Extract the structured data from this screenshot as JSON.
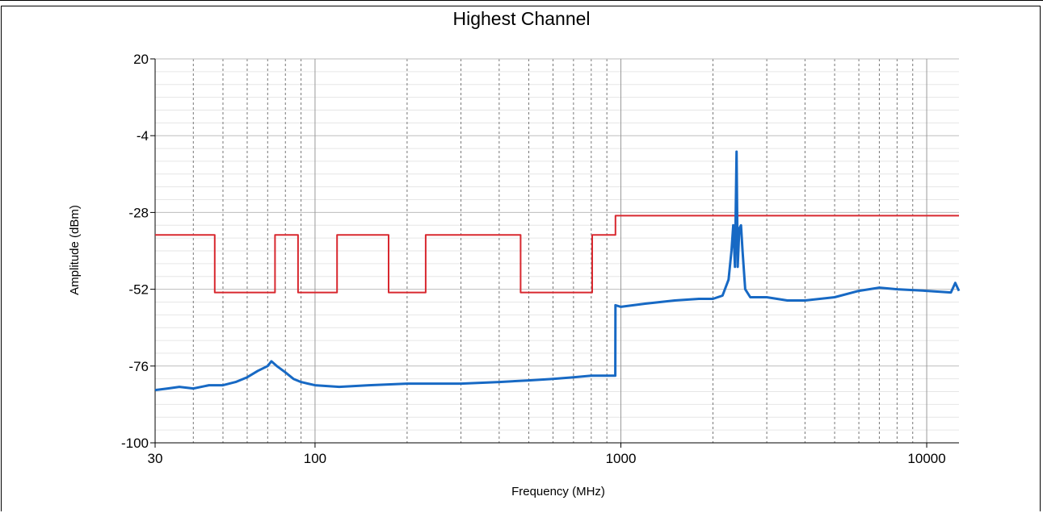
{
  "chart_data": {
    "type": "line",
    "title": "Highest Channel",
    "xlabel": "Frequency (MHz)",
    "ylabel": "Amplitude (dBm)",
    "xscale": "log",
    "xlim": [
      30,
      12750
    ],
    "ylim": [
      -100,
      20
    ],
    "xticks": [
      30,
      100,
      1000,
      10000
    ],
    "yticks": [
      20,
      -4,
      -28,
      -52,
      -76,
      -100
    ],
    "grid": true,
    "legend": "none",
    "series": [
      {
        "color": "#d8282f",
        "points": [
          [
            30,
            -35
          ],
          [
            47,
            -35
          ],
          [
            47,
            -53
          ],
          [
            74,
            -53
          ],
          [
            74,
            -35
          ],
          [
            88,
            -35
          ],
          [
            88,
            -53
          ],
          [
            118,
            -53
          ],
          [
            118,
            -35
          ],
          [
            174,
            -35
          ],
          [
            174,
            -53
          ],
          [
            230,
            -53
          ],
          [
            230,
            -35
          ],
          [
            470,
            -35
          ],
          [
            470,
            -53
          ],
          [
            806,
            -53
          ],
          [
            806,
            -35
          ],
          [
            960,
            -35
          ],
          [
            960,
            -29
          ],
          [
            12750,
            -29
          ]
        ]
      },
      {
        "color": "#1769c4",
        "points": [
          [
            30,
            -83.5
          ],
          [
            33,
            -83
          ],
          [
            36,
            -82.5
          ],
          [
            40,
            -83
          ],
          [
            45,
            -82
          ],
          [
            50,
            -82
          ],
          [
            55,
            -81
          ],
          [
            60,
            -79.5
          ],
          [
            65,
            -77.5
          ],
          [
            70,
            -76
          ],
          [
            72,
            -74.5
          ],
          [
            75,
            -76
          ],
          [
            80,
            -78
          ],
          [
            85,
            -80
          ],
          [
            90,
            -81
          ],
          [
            100,
            -82
          ],
          [
            120,
            -82.5
          ],
          [
            150,
            -82
          ],
          [
            200,
            -81.5
          ],
          [
            300,
            -81.5
          ],
          [
            400,
            -81
          ],
          [
            500,
            -80.5
          ],
          [
            600,
            -80
          ],
          [
            700,
            -79.5
          ],
          [
            800,
            -79
          ],
          [
            959,
            -79
          ],
          [
            960,
            -57
          ],
          [
            1000,
            -57.5
          ],
          [
            1200,
            -56.5
          ],
          [
            1500,
            -55.5
          ],
          [
            1800,
            -55
          ],
          [
            2000,
            -55
          ],
          [
            2150,
            -54
          ],
          [
            2250,
            -49
          ],
          [
            2300,
            -40
          ],
          [
            2330,
            -32
          ],
          [
            2360,
            -45
          ],
          [
            2390,
            -9
          ],
          [
            2410,
            -45
          ],
          [
            2440,
            -33
          ],
          [
            2470,
            -32
          ],
          [
            2500,
            -40
          ],
          [
            2550,
            -52
          ],
          [
            2650,
            -54.5
          ],
          [
            3000,
            -54.5
          ],
          [
            3500,
            -55.5
          ],
          [
            4000,
            -55.5
          ],
          [
            5000,
            -54.5
          ],
          [
            6000,
            -52.5
          ],
          [
            7000,
            -51.5
          ],
          [
            8000,
            -52
          ],
          [
            10000,
            -52.5
          ],
          [
            12000,
            -53
          ],
          [
            12400,
            -50
          ],
          [
            12750,
            -52.5
          ]
        ]
      }
    ]
  }
}
